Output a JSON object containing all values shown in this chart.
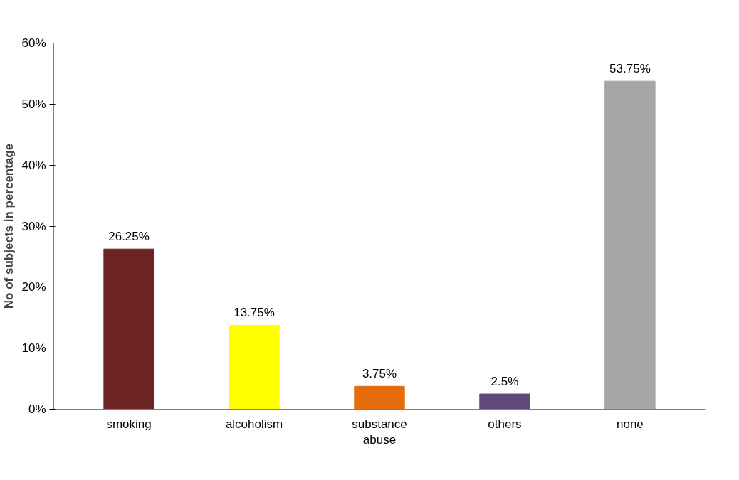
{
  "chart_data": {
    "type": "bar",
    "ylabel": "No of subjects in percentage",
    "categories": [
      "smoking",
      "alcoholism",
      "substance abuse",
      "others",
      "none"
    ],
    "values": [
      26.25,
      13.75,
      3.75,
      2.5,
      53.75
    ],
    "colors": [
      "#6b2323",
      "#ffff00",
      "#e46c0a",
      "#604a7b",
      "#a6a6a6"
    ],
    "value_labels": [
      "26.25%",
      "13.75%",
      "3.75%",
      "2.5%",
      "53.75%"
    ],
    "ylim": [
      0,
      60
    ],
    "yticks": [
      {
        "value": 0,
        "label": "0%"
      },
      {
        "value": 10,
        "label": "10%"
      },
      {
        "value": 20,
        "label": "20%"
      },
      {
        "value": 30,
        "label": "30%"
      },
      {
        "value": 40,
        "label": "40%"
      },
      {
        "value": 50,
        "label": "50%"
      },
      {
        "value": 60,
        "label": "60%"
      }
    ],
    "grid": false
  }
}
